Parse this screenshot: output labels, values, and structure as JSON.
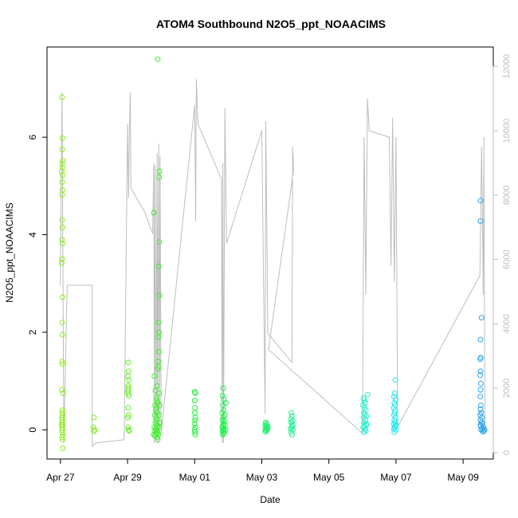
{
  "chart_data": {
    "type": "scatter",
    "title": "ATOM4 Southbound N2O5_ppt_NOAACIMS",
    "xlabel": "Date",
    "ylabel": "N2O5_ppt_NOAACIMS",
    "x_ticks": [
      "Apr 27",
      "Apr 29",
      "May 01",
      "May 03",
      "May 05",
      "May 07",
      "May 09"
    ],
    "y_ticks": [
      "0",
      "2",
      "4",
      "6"
    ],
    "y2_ticks": [
      "0",
      "2000",
      "4000",
      "6000",
      "8000",
      "10000",
      "12000"
    ],
    "xlim_days": [
      26.6,
      39.9
    ],
    "ylim": [
      -0.6,
      7.85
    ],
    "y2lim": [
      -200,
      12600
    ],
    "x_tick_days": [
      27,
      29,
      31,
      33,
      35,
      37,
      39
    ],
    "colors": {
      "altitude_line": "#bdbdbd",
      "right_axis": "#bdbdbd",
      "frame": "#000000"
    },
    "series": [
      {
        "values": [
          [
            27.05,
            6.82
          ],
          [
            27.06,
            5.98
          ],
          [
            27.05,
            5.75
          ],
          [
            27.07,
            5.52
          ],
          [
            27.05,
            5.46
          ],
          [
            27.06,
            5.38
          ],
          [
            27.04,
            5.3
          ],
          [
            27.06,
            5.22
          ],
          [
            27.05,
            5.08
          ],
          [
            27.06,
            4.92
          ],
          [
            27.05,
            4.82
          ],
          [
            27.05,
            4.3
          ],
          [
            27.06,
            4.15
          ],
          [
            27.05,
            3.9
          ],
          [
            27.06,
            3.82
          ],
          [
            27.05,
            3.5
          ],
          [
            27.04,
            3.42
          ],
          [
            27.06,
            2.72
          ],
          [
            27.05,
            2.2
          ],
          [
            27.06,
            1.95
          ],
          [
            27.05,
            1.4
          ],
          [
            27.06,
            1.35
          ],
          [
            27.04,
            0.82
          ],
          [
            27.08,
            0.75
          ],
          [
            27.06,
            0.4
          ],
          [
            27.05,
            0.35
          ],
          [
            27.07,
            0.3
          ],
          [
            27.04,
            0.25
          ],
          [
            27.06,
            0.2
          ],
          [
            27.05,
            0.15
          ],
          [
            27.03,
            0.1
          ],
          [
            27.07,
            0.1
          ],
          [
            27.05,
            0.05
          ],
          [
            27.06,
            0.0
          ],
          [
            27.04,
            -0.05
          ],
          [
            27.08,
            -0.1
          ],
          [
            27.05,
            -0.15
          ],
          [
            27.06,
            -0.2
          ],
          [
            27.07,
            -0.38
          ]
        ],
        "color": "#8eef1f"
      },
      {
        "values": [
          [
            28.0,
            0.25
          ],
          [
            27.98,
            0.05
          ],
          [
            28.02,
            0.0
          ],
          [
            28.0,
            -0.03
          ]
        ],
        "color": "#7ff01a"
      },
      {
        "values": [
          [
            29.02,
            1.38
          ],
          [
            29.03,
            1.2
          ],
          [
            29.01,
            1.1
          ],
          [
            29.04,
            1.02
          ],
          [
            29.02,
            0.9
          ],
          [
            29.03,
            0.85
          ],
          [
            29.01,
            0.8
          ],
          [
            29.02,
            0.75
          ],
          [
            29.04,
            0.7
          ],
          [
            29.02,
            0.45
          ],
          [
            29.03,
            0.3
          ],
          [
            29.01,
            0.25
          ],
          [
            29.02,
            0.05
          ],
          [
            29.03,
            0.0
          ],
          [
            29.05,
            -0.02
          ]
        ],
        "color": "#62f01f"
      },
      {
        "values": [
          [
            29.9,
            7.6
          ],
          [
            29.78,
            4.45
          ],
          [
            29.95,
            5.3
          ],
          [
            29.94,
            5.18
          ],
          [
            29.95,
            3.85
          ],
          [
            29.93,
            3.35
          ],
          [
            29.95,
            2.75
          ],
          [
            29.93,
            2.2
          ],
          [
            29.94,
            2.0
          ],
          [
            29.92,
            1.9
          ],
          [
            29.93,
            1.6
          ],
          [
            29.91,
            1.4
          ],
          [
            29.93,
            1.3
          ],
          [
            29.9,
            1.25
          ],
          [
            29.8,
            1.1
          ],
          [
            29.88,
            0.9
          ],
          [
            29.83,
            0.8
          ],
          [
            29.85,
            0.65
          ],
          [
            29.87,
            0.6
          ],
          [
            29.9,
            0.55
          ],
          [
            29.82,
            0.5
          ],
          [
            29.86,
            0.45
          ],
          [
            29.84,
            0.4
          ],
          [
            29.89,
            0.35
          ],
          [
            29.81,
            0.3
          ],
          [
            29.85,
            0.25
          ],
          [
            29.88,
            0.2
          ],
          [
            29.83,
            0.15
          ],
          [
            29.86,
            0.1
          ],
          [
            29.9,
            0.08
          ],
          [
            29.8,
            0.05
          ],
          [
            29.84,
            0.02
          ],
          [
            29.87,
            0.0
          ],
          [
            29.82,
            -0.03
          ],
          [
            29.89,
            -0.05
          ],
          [
            29.85,
            -0.08
          ],
          [
            29.92,
            -0.1
          ],
          [
            29.81,
            -0.12
          ],
          [
            29.88,
            -0.15
          ],
          [
            29.9,
            -0.2
          ],
          [
            29.78,
            -0.1
          ],
          [
            29.94,
            0.05
          ],
          [
            29.95,
            0.15
          ],
          [
            29.93,
            0.3
          ],
          [
            29.95,
            0.5
          ],
          [
            29.94,
            0.75
          ]
        ],
        "color": "#3ef02a"
      },
      {
        "values": [
          [
            31.0,
            0.78
          ],
          [
            31.02,
            0.75
          ],
          [
            31.0,
            0.6
          ],
          [
            31.01,
            0.45
          ],
          [
            31.0,
            0.35
          ],
          [
            31.02,
            0.25
          ],
          [
            31.01,
            0.2
          ],
          [
            31.0,
            0.12
          ],
          [
            31.02,
            0.05
          ],
          [
            31.0,
            0.0
          ],
          [
            31.01,
            -0.05
          ],
          [
            31.02,
            -0.1
          ]
        ],
        "color": "#22f038"
      },
      {
        "values": [
          [
            31.85,
            0.85
          ],
          [
            31.83,
            0.7
          ],
          [
            31.87,
            0.62
          ],
          [
            31.93,
            0.55
          ],
          [
            31.84,
            0.5
          ],
          [
            31.86,
            0.4
          ],
          [
            31.82,
            0.35
          ],
          [
            31.9,
            0.3
          ],
          [
            31.85,
            0.25
          ],
          [
            31.83,
            0.2
          ],
          [
            31.88,
            0.18
          ],
          [
            31.86,
            0.12
          ],
          [
            31.84,
            0.08
          ],
          [
            31.82,
            0.05
          ],
          [
            31.87,
            0.02
          ],
          [
            31.85,
            0.0
          ],
          [
            31.83,
            -0.02
          ],
          [
            31.88,
            -0.05
          ],
          [
            31.86,
            -0.08
          ],
          [
            31.84,
            -0.1
          ],
          [
            31.9,
            0.1
          ],
          [
            31.92,
            0.0
          ]
        ],
        "color": "#1df04a"
      },
      {
        "values": [
          [
            33.12,
            0.15
          ],
          [
            33.15,
            0.1
          ],
          [
            33.1,
            0.08
          ],
          [
            33.13,
            0.05
          ],
          [
            33.16,
            0.03
          ],
          [
            33.12,
            0.0
          ],
          [
            33.14,
            -0.02
          ],
          [
            33.1,
            -0.04
          ],
          [
            33.17,
            0.02
          ],
          [
            33.13,
            0.12
          ],
          [
            33.18,
            0.06
          ],
          [
            33.11,
            0.0
          ]
        ],
        "color": "#1ef06e"
      },
      {
        "values": [
          [
            33.88,
            0.35
          ],
          [
            33.9,
            0.28
          ],
          [
            33.87,
            0.22
          ],
          [
            33.92,
            0.18
          ],
          [
            33.88,
            0.15
          ],
          [
            33.91,
            0.1
          ],
          [
            33.89,
            0.05
          ],
          [
            33.86,
            0.02
          ],
          [
            33.93,
            0.0
          ],
          [
            33.88,
            -0.05
          ],
          [
            33.9,
            -0.1
          ],
          [
            33.92,
            0.08
          ]
        ],
        "color": "#1ff090"
      },
      {
        "values": [
          [
            36.03,
            0.65
          ],
          [
            36.05,
            0.6
          ],
          [
            36.08,
            0.55
          ],
          [
            36.02,
            0.5
          ],
          [
            36.06,
            0.45
          ],
          [
            36.1,
            0.4
          ],
          [
            36.04,
            0.35
          ],
          [
            36.07,
            0.3
          ],
          [
            36.12,
            0.28
          ],
          [
            36.03,
            0.25
          ],
          [
            36.09,
            0.2
          ],
          [
            36.05,
            0.15
          ],
          [
            36.11,
            0.12
          ],
          [
            36.06,
            0.08
          ],
          [
            36.02,
            0.05
          ],
          [
            36.08,
            0.02
          ],
          [
            36.1,
            -0.02
          ],
          [
            36.15,
            0.72
          ],
          [
            36.13,
            0.1
          ],
          [
            36.04,
            -0.05
          ]
        ],
        "color": "#22f0cc"
      },
      {
        "values": [
          [
            36.98,
            1.02
          ],
          [
            36.96,
            0.75
          ],
          [
            36.94,
            0.68
          ],
          [
            36.99,
            0.62
          ],
          [
            36.95,
            0.55
          ],
          [
            36.97,
            0.5
          ],
          [
            36.93,
            0.45
          ],
          [
            36.98,
            0.4
          ],
          [
            36.96,
            0.35
          ],
          [
            36.94,
            0.3
          ],
          [
            36.99,
            0.25
          ],
          [
            36.95,
            0.2
          ],
          [
            36.97,
            0.15
          ],
          [
            36.93,
            0.12
          ],
          [
            36.98,
            0.08
          ],
          [
            36.96,
            0.05
          ],
          [
            36.94,
            0.02
          ],
          [
            36.99,
            0.0
          ],
          [
            36.95,
            -0.05
          ],
          [
            37.0,
            0.1
          ]
        ],
        "color": "#22e8f0"
      },
      {
        "values": [
          [
            39.52,
            4.7
          ],
          [
            39.52,
            4.28
          ],
          [
            39.55,
            2.3
          ],
          [
            39.52,
            1.85
          ],
          [
            39.53,
            1.48
          ],
          [
            39.51,
            1.45
          ],
          [
            39.52,
            1.2
          ],
          [
            39.51,
            1.12
          ],
          [
            39.53,
            0.95
          ],
          [
            39.52,
            0.82
          ],
          [
            39.51,
            0.68
          ],
          [
            39.53,
            0.5
          ],
          [
            39.52,
            0.42
          ],
          [
            39.54,
            0.35
          ],
          [
            39.51,
            0.3
          ],
          [
            39.56,
            0.25
          ],
          [
            39.52,
            0.2
          ],
          [
            39.55,
            0.15
          ],
          [
            39.58,
            0.12
          ],
          [
            39.53,
            0.08
          ],
          [
            39.6,
            0.05
          ],
          [
            39.57,
            0.02
          ],
          [
            39.54,
            0.0
          ],
          [
            39.62,
            -0.02
          ],
          [
            39.59,
            -0.04
          ],
          [
            39.52,
            0.1
          ],
          [
            39.64,
            0.0
          ]
        ],
        "color": "#2aa6f0"
      }
    ],
    "altitude_line_y2": [
      [
        27.0,
        5200
      ],
      [
        27.05,
        11200
      ],
      [
        27.1,
        300
      ],
      [
        27.2,
        5200
      ],
      [
        27.95,
        5200
      ],
      [
        27.95,
        200
      ],
      [
        28.05,
        300
      ],
      [
        28.9,
        400
      ],
      [
        29.0,
        10200
      ],
      [
        29.03,
        7900
      ],
      [
        29.05,
        9700
      ],
      [
        29.08,
        11200
      ],
      [
        29.1,
        8200
      ],
      [
        29.5,
        7500
      ],
      [
        29.75,
        6800
      ],
      [
        29.78,
        9000
      ],
      [
        29.8,
        300
      ],
      [
        29.82,
        8900
      ],
      [
        29.85,
        400
      ],
      [
        29.88,
        9300
      ],
      [
        29.9,
        300
      ],
      [
        29.93,
        9600
      ],
      [
        29.95,
        400
      ],
      [
        29.97,
        9200
      ],
      [
        30.0,
        600
      ],
      [
        31.0,
        10800
      ],
      [
        31.03,
        7200
      ],
      [
        31.05,
        11600
      ],
      [
        31.1,
        10200
      ],
      [
        31.8,
        8500
      ],
      [
        31.82,
        300
      ],
      [
        31.84,
        9000
      ],
      [
        31.86,
        300
      ],
      [
        31.9,
        10700
      ],
      [
        31.95,
        6500
      ],
      [
        33.0,
        10000
      ],
      [
        33.05,
        5500
      ],
      [
        33.1,
        1200
      ],
      [
        33.12,
        10300
      ],
      [
        33.18,
        3700
      ],
      [
        33.9,
        2800
      ],
      [
        33.92,
        9500
      ],
      [
        33.95,
        8800
      ],
      [
        33.2,
        3200
      ],
      [
        36.0,
        600
      ],
      [
        36.05,
        9800
      ],
      [
        36.1,
        4900
      ],
      [
        36.15,
        11000
      ],
      [
        36.2,
        10000
      ],
      [
        36.8,
        9800
      ],
      [
        36.85,
        5800
      ],
      [
        36.9,
        10400
      ],
      [
        36.95,
        5300
      ],
      [
        37.0,
        9800
      ],
      [
        37.05,
        800
      ],
      [
        39.5,
        5500
      ],
      [
        39.55,
        9500
      ],
      [
        39.6,
        4900
      ],
      [
        39.62,
        9800
      ],
      [
        39.65,
        600
      ]
    ]
  }
}
